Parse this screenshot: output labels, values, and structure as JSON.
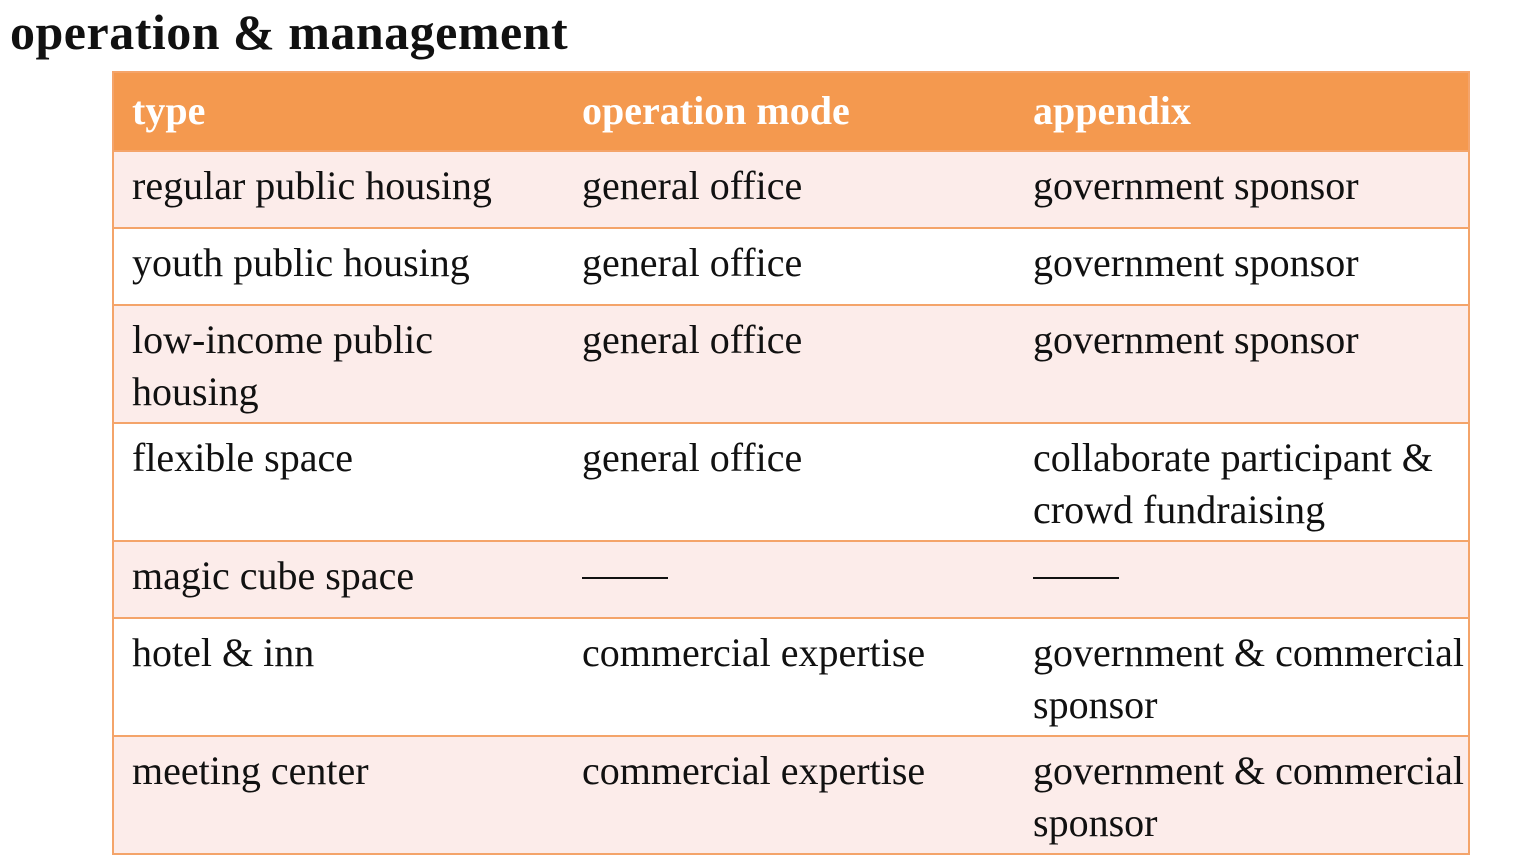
{
  "title": "operation & management",
  "table": {
    "headers": [
      "type",
      "operation mode",
      "appendix"
    ],
    "rows": [
      [
        "regular public housing",
        "general office",
        "government sponsor"
      ],
      [
        "youth public housing",
        "general office",
        "government sponsor"
      ],
      [
        "low-income public housing",
        "general office",
        "government sponsor"
      ],
      [
        "flexible space",
        "general office",
        "collaborate participant & crowd fundraising"
      ],
      [
        "magic cube space",
        "——",
        "——"
      ],
      [
        "hotel & inn",
        "commercial expertise",
        "government & commercial sponsor"
      ],
      [
        "meeting center",
        "commercial expertise",
        "government & commercial sponsor"
      ]
    ]
  },
  "colors": {
    "header_bg": "#f4994f",
    "border": "#f4a46a",
    "band_odd": "#fcecea",
    "band_even": "#ffffff"
  }
}
